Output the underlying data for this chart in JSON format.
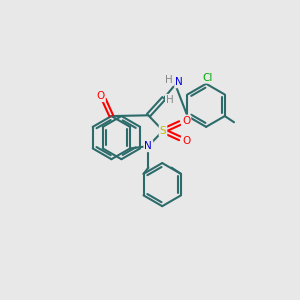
{
  "bg_color": "#e8e8e8",
  "figsize": [
    3.0,
    3.0
  ],
  "dpi": 100,
  "bond_color": "#2d6b6b",
  "bond_lw": 1.5,
  "colors": {
    "N": "#0000dd",
    "O": "#ff0000",
    "S": "#bbbb00",
    "Cl": "#00aa00",
    "C": "#2d6b6b",
    "H": "#888888"
  },
  "font_size": 7.5
}
